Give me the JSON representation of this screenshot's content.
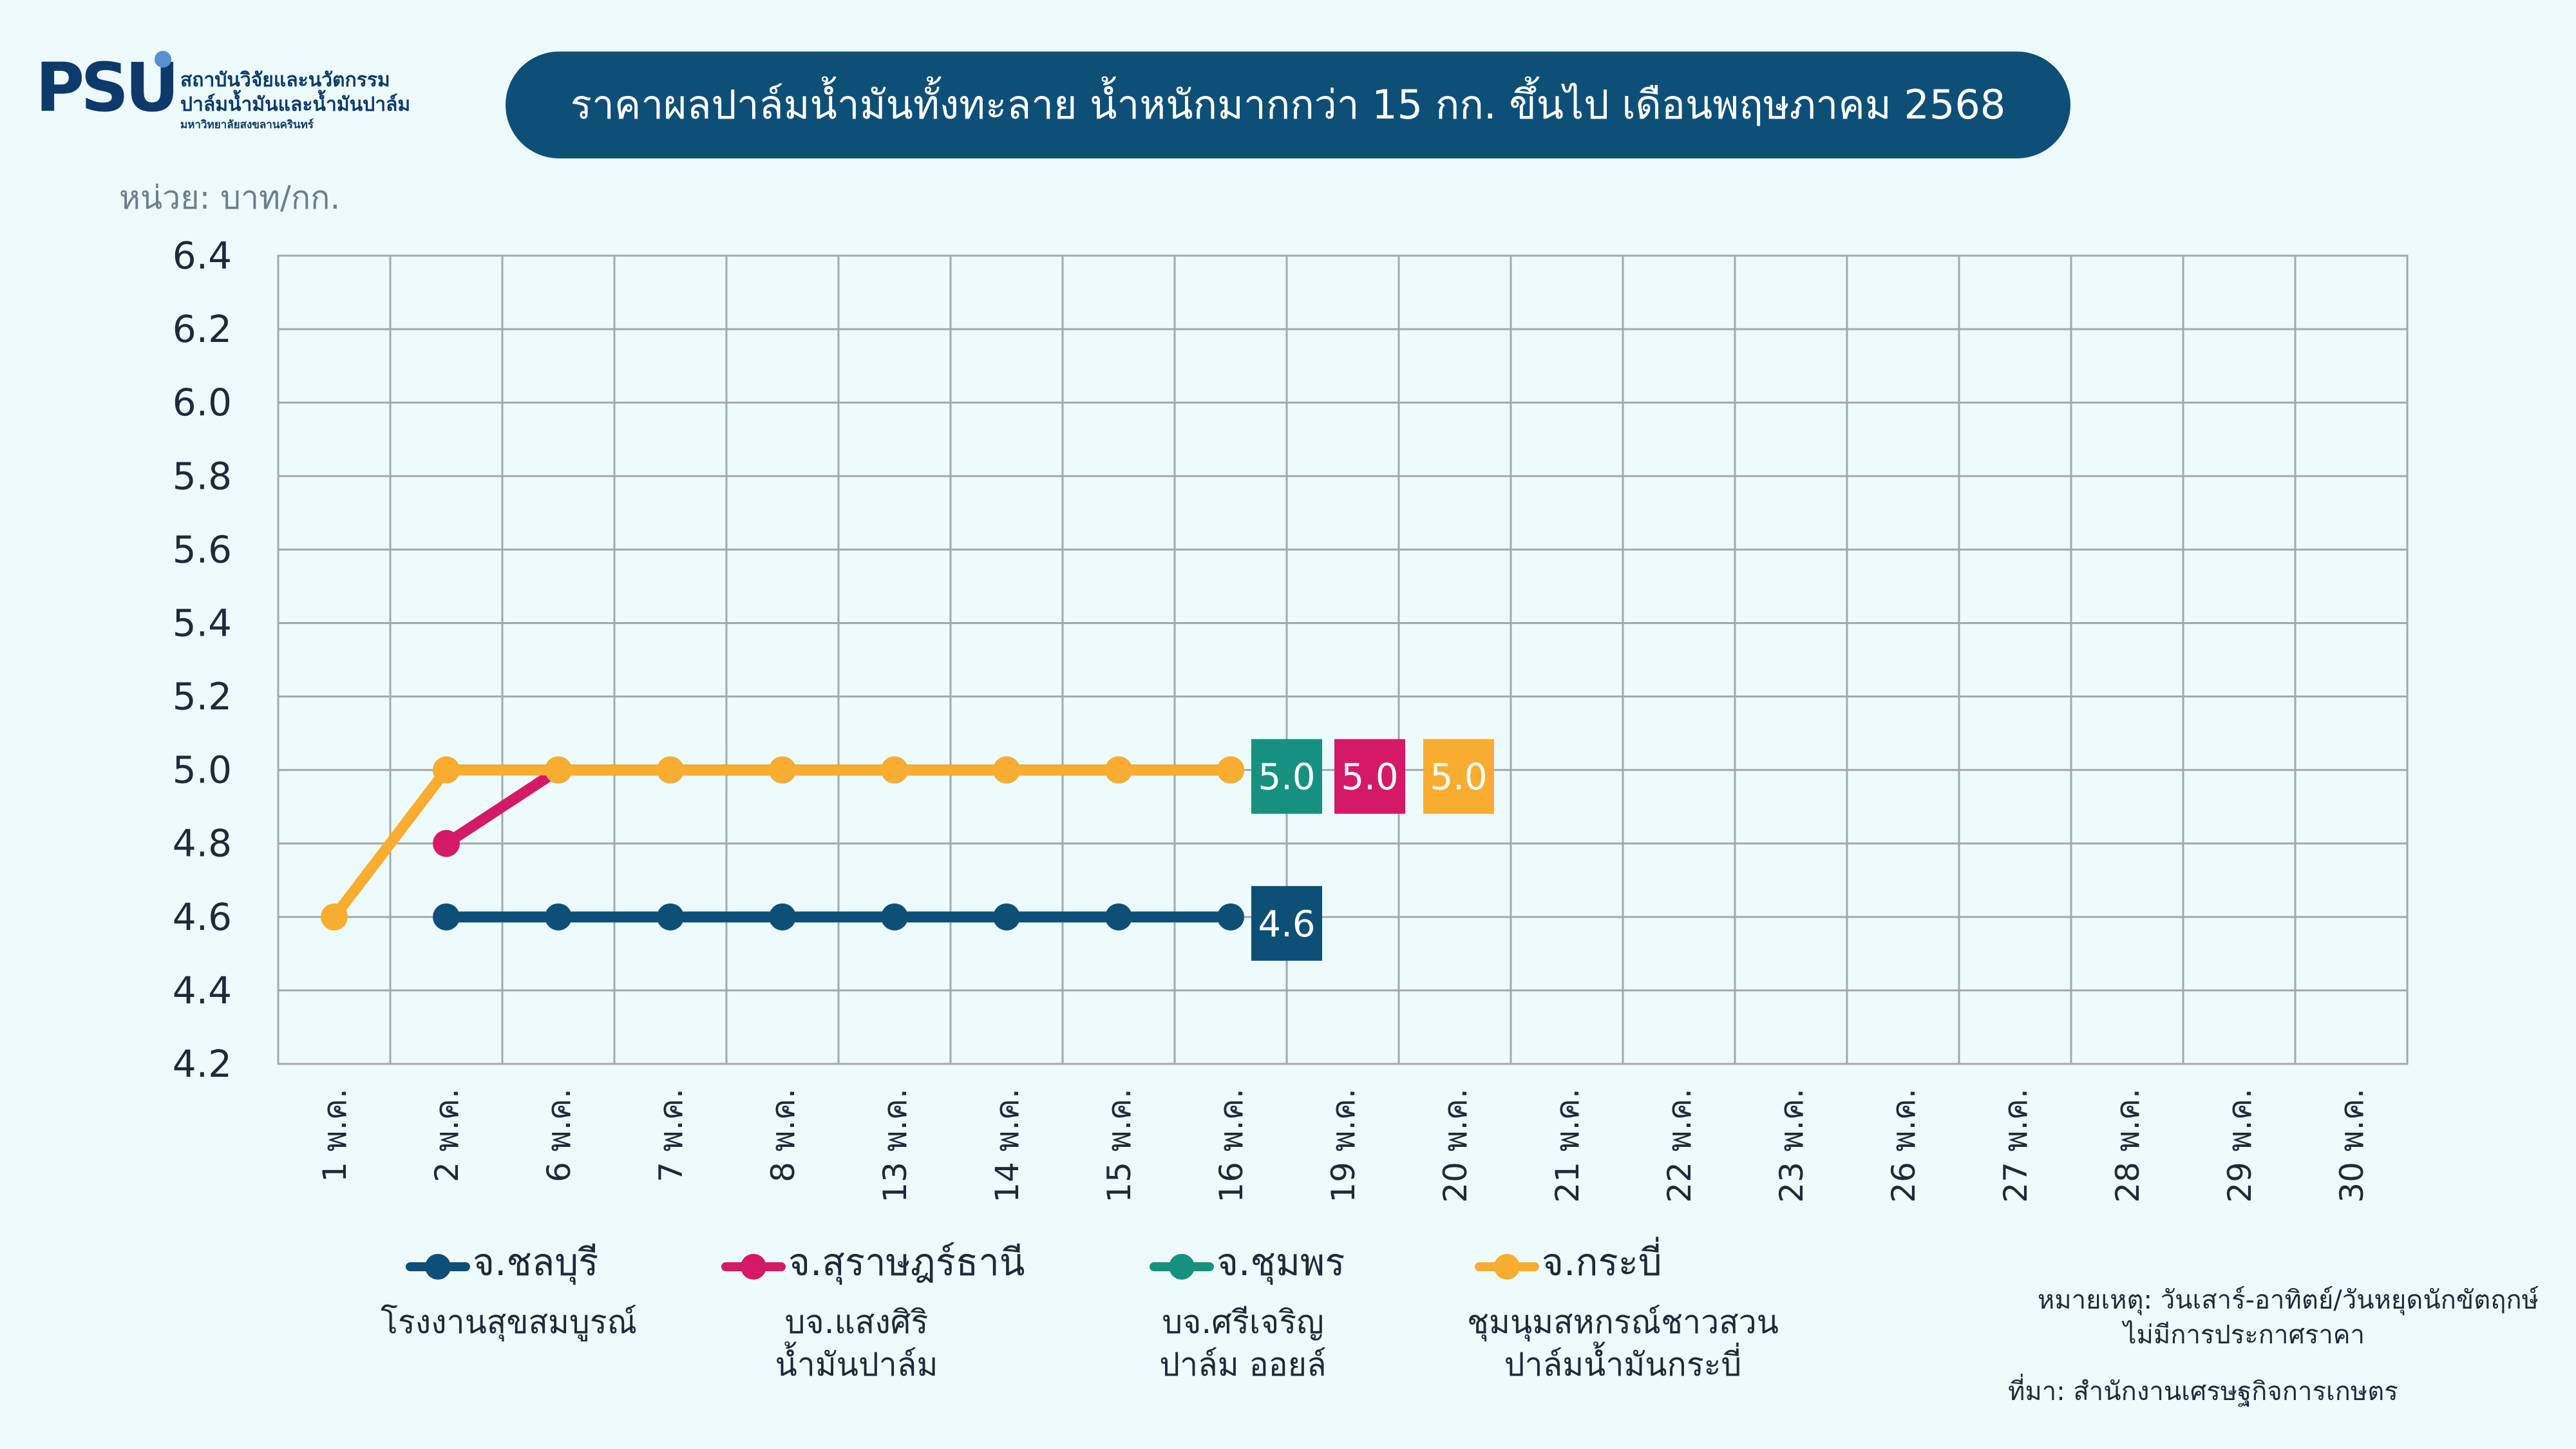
{
  "logo": {
    "text": "PSU",
    "institute_line1": "สถาบันวิจัยและนวัตกรรม",
    "institute_line2": "ปาล์มน้ำมันและน้ำมันปาล์ม",
    "university": "มหาวิทยาลัยสงขลานครินทร์",
    "color": "#0D3A6B",
    "dot_color": "#5B8FD0"
  },
  "header": {
    "title": "ราคาผลปาล์มน้ำมันทั้งทะลาย น้ำหนักมากกว่า 15 กก. ขึ้นไป เดือนพฤษภาคม 2568",
    "unit": "หน่วย: บาท/กก."
  },
  "chart_data": {
    "type": "line",
    "title": "ราคาผลปาล์มน้ำมันทั้งทะลาย น้ำหนักมากกว่า 15 กก. ขึ้นไป เดือนพฤษภาคม 2568",
    "ylabel": "หน่วย: บาท/กก.",
    "xlabel": "",
    "ylim": [
      4.2,
      6.4
    ],
    "yticks": [
      "4.2",
      "4.4",
      "4.6",
      "4.8",
      "5.0",
      "5.2",
      "5.4",
      "5.6",
      "5.8",
      "6.0",
      "6.2",
      "6.4"
    ],
    "categories": [
      "1 พ.ค.",
      "2 พ.ค.",
      "6 พ.ค.",
      "7 พ.ค.",
      "8 พ.ค.",
      "13 พ.ค.",
      "14 พ.ค.",
      "15 พ.ค.",
      "16 พ.ค.",
      "19 พ.ค.",
      "20 พ.ค.",
      "21 พ.ค.",
      "22 พ.ค.",
      "23 พ.ค.",
      "26 พ.ค.",
      "27 พ.ค.",
      "28 พ.ค.",
      "29 พ.ค.",
      "30 พ.ค."
    ],
    "grid": true,
    "legend_position": "bottom",
    "series": [
      {
        "name": "จ.ชลบุรี",
        "subtitle": [
          "โรงงานสุขสมบูรณ์"
        ],
        "color": "#0E4F78",
        "values": [
          null,
          4.6,
          4.6,
          4.6,
          4.6,
          4.6,
          4.6,
          4.6,
          4.6,
          null,
          null,
          null,
          null,
          null,
          null,
          null,
          null,
          null,
          null
        ],
        "last_label": "4.6"
      },
      {
        "name": "จ.สุราษฎร์ธานี",
        "subtitle": [
          "บจ.แสงศิริ",
          "น้ำมันปาล์ม"
        ],
        "color": "#D41A67",
        "values": [
          null,
          4.8,
          5.0,
          5.0,
          5.0,
          5.0,
          5.0,
          5.0,
          5.0,
          null,
          null,
          null,
          null,
          null,
          null,
          null,
          null,
          null,
          null
        ],
        "last_label": "5.0"
      },
      {
        "name": "จ.ชุมพร",
        "subtitle": [
          "บจ.ศรีเจริญ",
          "ปาล์ม ออยล์"
        ],
        "color": "#16917F",
        "values": [
          null,
          5.0,
          5.0,
          5.0,
          5.0,
          5.0,
          5.0,
          5.0,
          5.0,
          null,
          null,
          null,
          null,
          null,
          null,
          null,
          null,
          null,
          null
        ],
        "last_label": "5.0"
      },
      {
        "name": "จ.กระบี่",
        "subtitle": [
          "ชุมนุมสหกรณ์ชาวสวน",
          "ปาล์มน้ำมันกระบี่"
        ],
        "color": "#F8AD30",
        "values": [
          4.6,
          5.0,
          5.0,
          5.0,
          5.0,
          5.0,
          5.0,
          5.0,
          5.0,
          null,
          null,
          null,
          null,
          null,
          null,
          null,
          null,
          null,
          null
        ],
        "last_label": "5.0"
      }
    ]
  },
  "footer": {
    "note_line1": "หมายเหตุ: วันเสาร์-อาทิตย์/วันหยุดนักขัตฤกษ์",
    "note_line2": "ไม่มีการประกาศราคา",
    "source": "ที่มา: สำนักงานเศรษฐกิจการเกษตร"
  }
}
